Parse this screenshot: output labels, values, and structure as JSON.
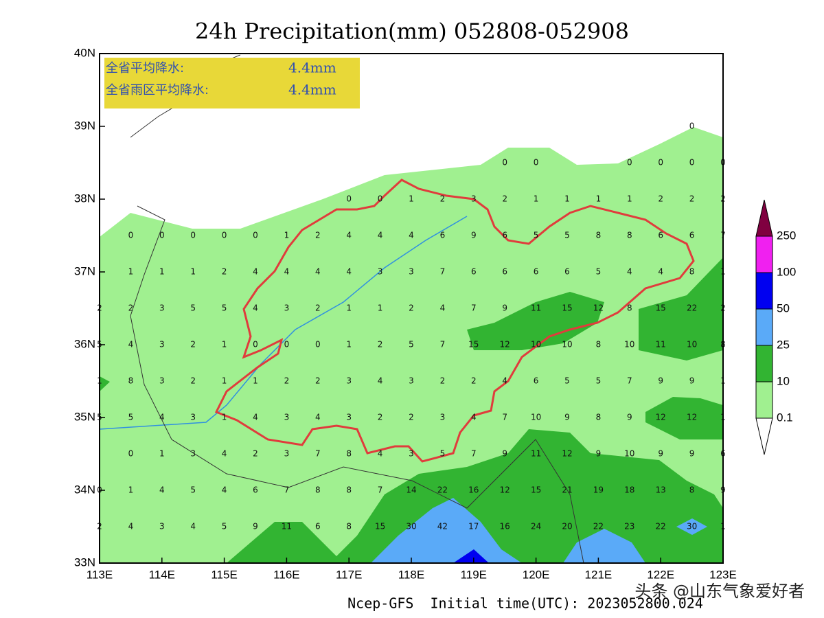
{
  "title": "24h Precipitation(mm) 052808-052908",
  "info_box": [
    {
      "label": "全省平均降水:",
      "value": "4.4mm"
    },
    {
      "label": "全省雨区平均降水:",
      "value": "4.4mm"
    }
  ],
  "xlim": [
    113,
    123
  ],
  "ylim": [
    33,
    40
  ],
  "xticks": [
    {
      "value": 113,
      "label": "113E"
    },
    {
      "value": 114,
      "label": "114E"
    },
    {
      "value": 115,
      "label": "115E"
    },
    {
      "value": 116,
      "label": "116E"
    },
    {
      "value": 117,
      "label": "117E"
    },
    {
      "value": 118,
      "label": "118E"
    },
    {
      "value": 119,
      "label": "119E"
    },
    {
      "value": 120,
      "label": "120E"
    },
    {
      "value": 121,
      "label": "121E"
    },
    {
      "value": 122,
      "label": "122E"
    },
    {
      "value": 123,
      "label": "123E"
    }
  ],
  "yticks": [
    {
      "value": 33,
      "label": "33N"
    },
    {
      "value": 34,
      "label": "34N"
    },
    {
      "value": 35,
      "label": "35N"
    },
    {
      "value": 36,
      "label": "36N"
    },
    {
      "value": 37,
      "label": "37N"
    },
    {
      "value": 38,
      "label": "38N"
    },
    {
      "value": 39,
      "label": "39N"
    },
    {
      "value": 40,
      "label": "40N"
    }
  ],
  "grid_values": [
    [
      null,
      null,
      null,
      null,
      null,
      null,
      null,
      null,
      null,
      null,
      null,
      null,
      null,
      null,
      null,
      null,
      null,
      null,
      null,
      0,
      null
    ],
    [
      null,
      null,
      null,
      null,
      null,
      null,
      null,
      null,
      null,
      null,
      null,
      null,
      null,
      0,
      0,
      null,
      null,
      0,
      0,
      0,
      0
    ],
    [
      null,
      null,
      null,
      null,
      null,
      null,
      null,
      null,
      0,
      0,
      1,
      2,
      3,
      2,
      1,
      1,
      1,
      1,
      2,
      2,
      2
    ],
    [
      null,
      0,
      0,
      0,
      0,
      0,
      1,
      2,
      4,
      4,
      4,
      6,
      9,
      6,
      5,
      5,
      8,
      8,
      6,
      6,
      7
    ],
    [
      null,
      1,
      1,
      1,
      2,
      4,
      4,
      4,
      4,
      3,
      3,
      7,
      6,
      6,
      6,
      6,
      5,
      4,
      4,
      8,
      1
    ],
    [
      2,
      2,
      3,
      5,
      5,
      4,
      3,
      2,
      1,
      1,
      2,
      4,
      7,
      9,
      11,
      15,
      12,
      8,
      15,
      22,
      2
    ],
    [
      5,
      4,
      3,
      2,
      1,
      0,
      0,
      0,
      1,
      2,
      5,
      7,
      15,
      12,
      10,
      10,
      8,
      10,
      11,
      10,
      8
    ],
    [
      1,
      8,
      3,
      2,
      1,
      1,
      2,
      2,
      3,
      4,
      3,
      2,
      2,
      4,
      6,
      5,
      5,
      7,
      9,
      9,
      1
    ],
    [
      5,
      5,
      4,
      3,
      1,
      4,
      3,
      4,
      3,
      2,
      2,
      3,
      4,
      7,
      10,
      9,
      8,
      9,
      12,
      12,
      1
    ],
    [
      null,
      0,
      1,
      3,
      4,
      2,
      3,
      7,
      8,
      4,
      3,
      5,
      7,
      9,
      11,
      12,
      9,
      10,
      9,
      9,
      6
    ],
    [
      0,
      1,
      4,
      5,
      4,
      6,
      7,
      8,
      8,
      7,
      14,
      22,
      16,
      12,
      15,
      21,
      19,
      18,
      13,
      8,
      9
    ],
    [
      2,
      4,
      3,
      4,
      5,
      9,
      11,
      6,
      8,
      15,
      30,
      42,
      17,
      16,
      24,
      20,
      22,
      23,
      22,
      30,
      1
    ]
  ],
  "legend": {
    "levels": [
      0.1,
      10,
      25,
      50,
      100,
      250
    ],
    "colors": [
      "#ffffff",
      "#a0f090",
      "#32b432",
      "#5aaaf8",
      "#0000f0",
      "#f020f0",
      "#800040"
    ]
  },
  "footer": "Ncep-GFS  Initial time(UTC): 2023052800.024",
  "watermark": "头条 @山东气象爱好者"
}
